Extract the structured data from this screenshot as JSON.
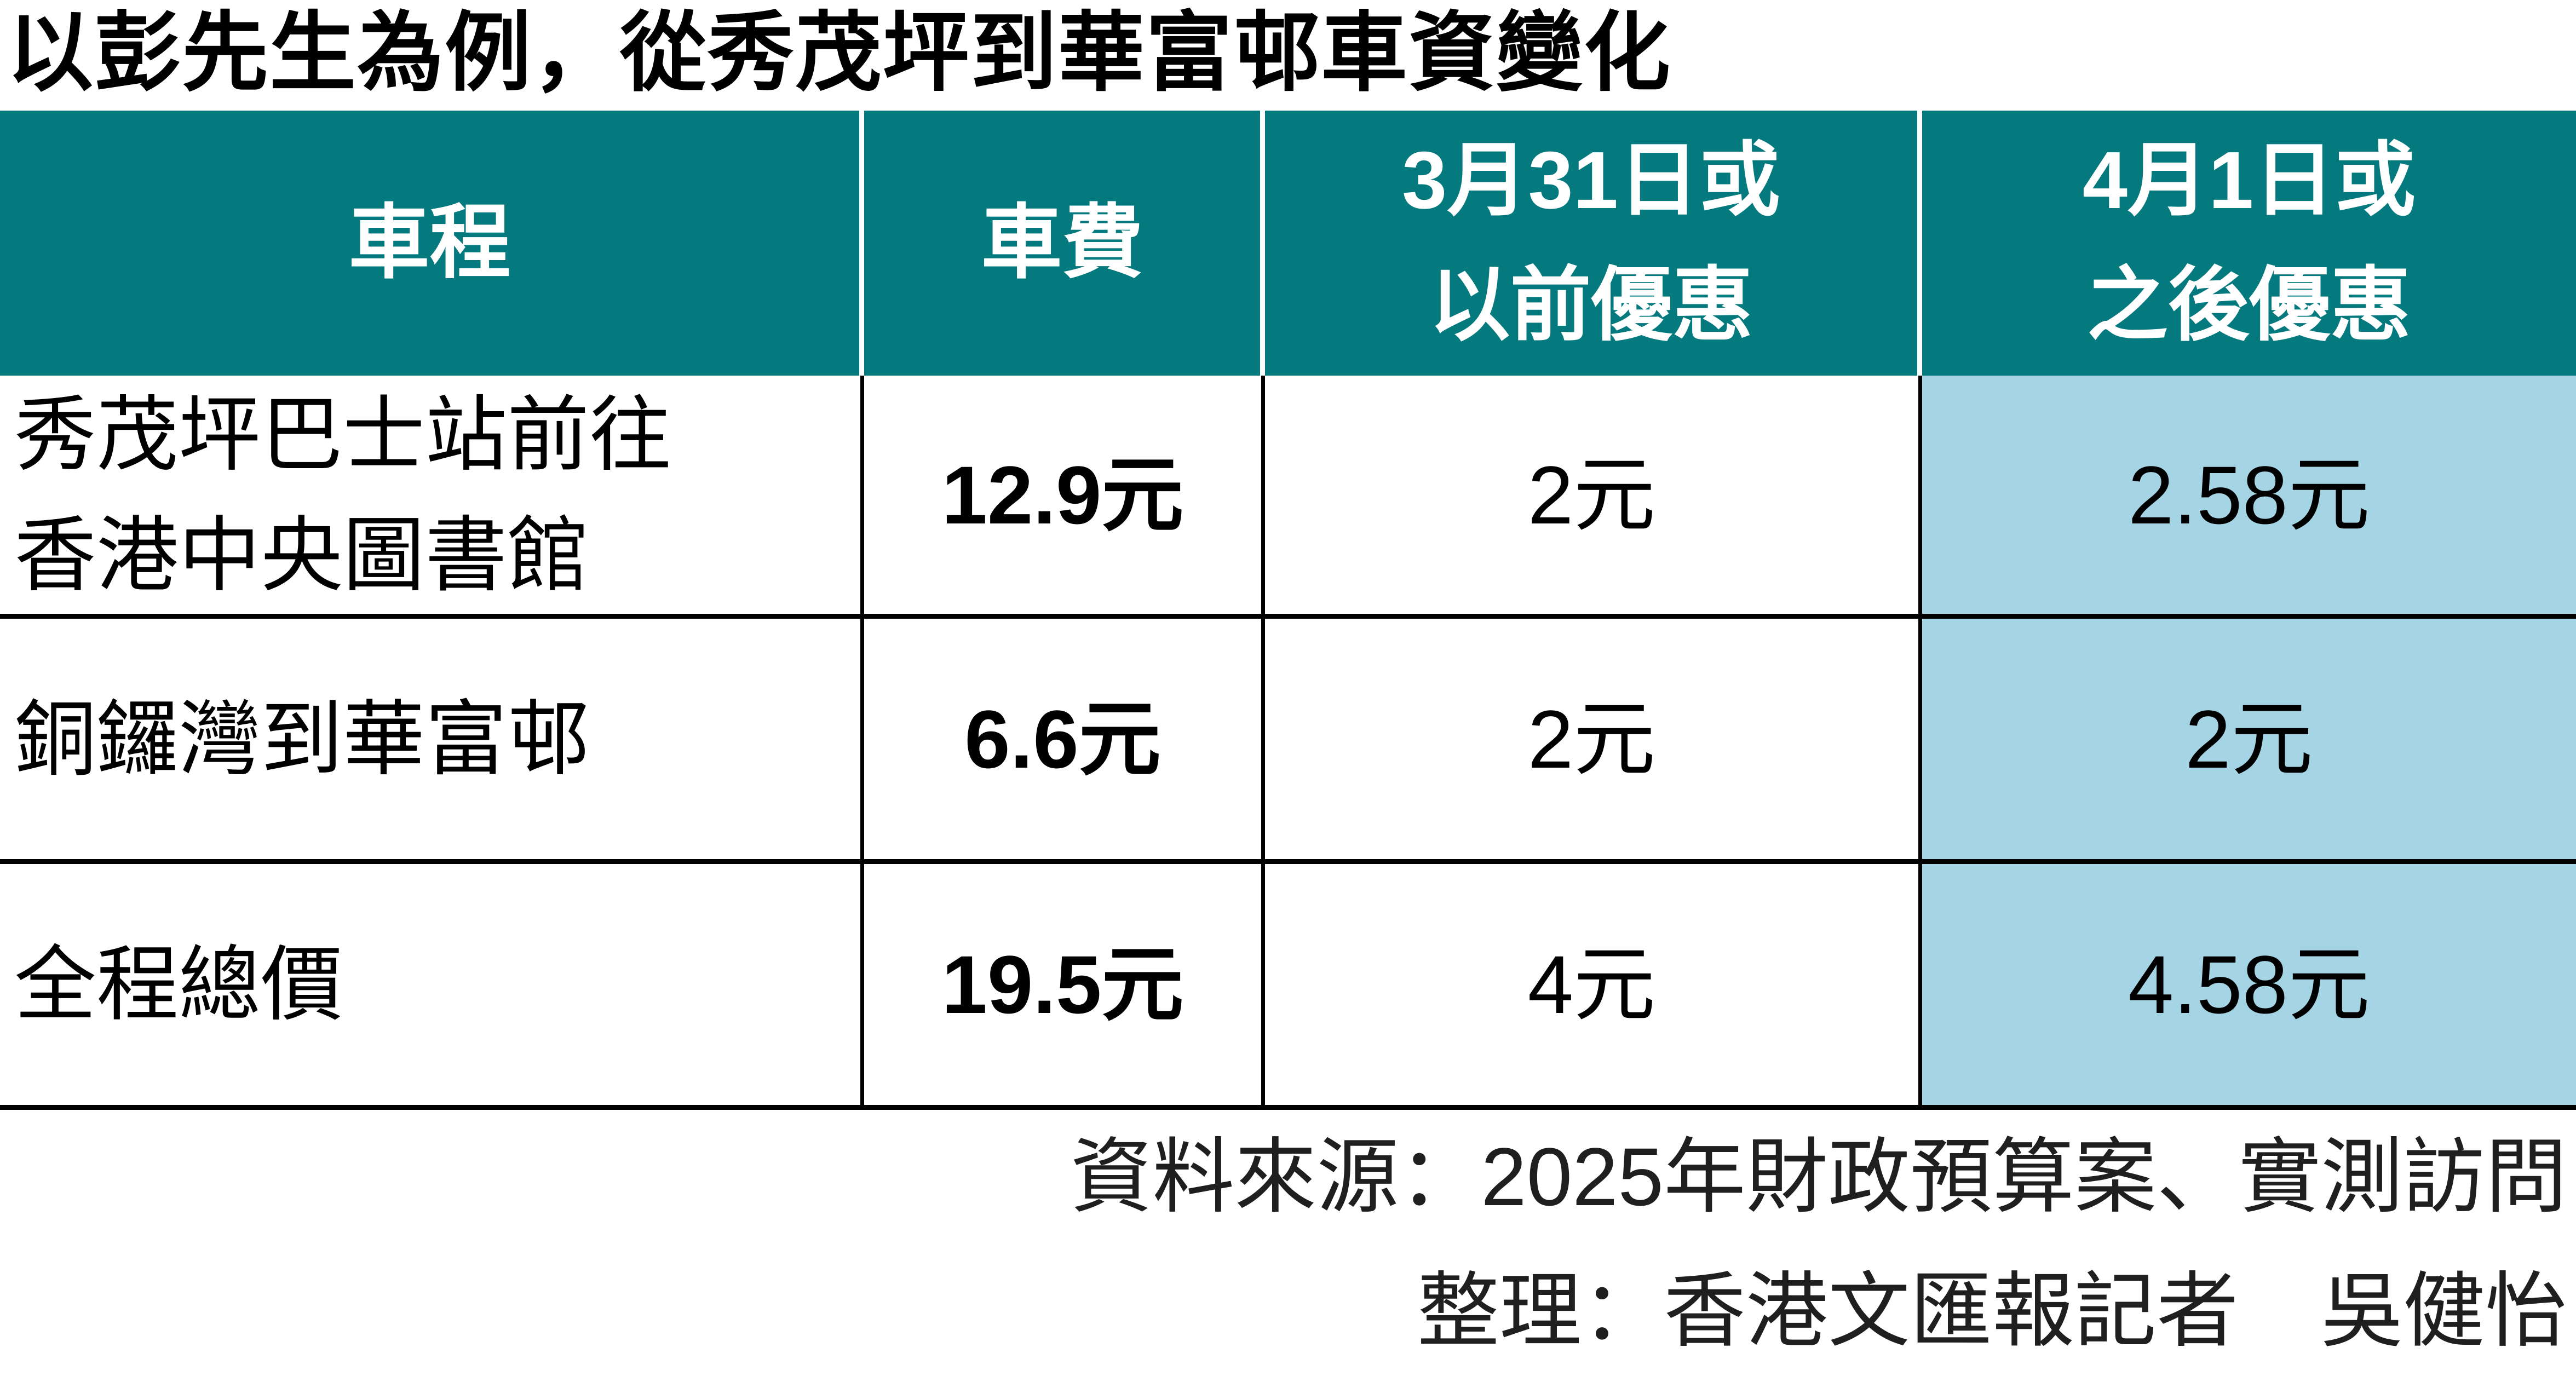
{
  "title": "以彭先生為例，從秀茂坪到華富邨車資變化",
  "table": {
    "header": {
      "trip": "車程",
      "fare": "車費",
      "before_line1": "3月31日或",
      "before_line2": "以前優惠",
      "after_line1": "4月1日或",
      "after_line2": "之後優惠"
    },
    "rows": [
      {
        "route_line1": "秀茂坪巴士站前往",
        "route_line2": "香港中央圖書館",
        "fare": "12.9元",
        "before": "2元",
        "after": "2.58元"
      },
      {
        "route_line1": "銅鑼灣到華富邨",
        "fare": "6.6元",
        "before": "2元",
        "after": "2元"
      },
      {
        "route_line1": "全程總價",
        "fare": "19.5元",
        "before": "4元",
        "after": "4.58元"
      }
    ]
  },
  "footer": {
    "source": "資料來源：2025年財政預算案、實測訪問",
    "credit": "整理：香港文匯報記者　吳健怡"
  },
  "colors": {
    "header_bg": "#047a7e",
    "header_text": "#ffffff",
    "highlight_bg": "#a5d4e4",
    "grid_line": "#000000"
  },
  "chart_data": {
    "type": "table",
    "title": "以彭先生為例，從秀茂坪到華富邨車資變化",
    "columns": [
      "車程",
      "車費",
      "3月31日或以前優惠",
      "4月1日或之後優惠"
    ],
    "rows": [
      [
        "秀茂坪巴士站前往香港中央圖書館",
        "12.9元",
        "2元",
        "2.58元"
      ],
      [
        "銅鑼灣到華富邨",
        "6.6元",
        "2元",
        "2元"
      ],
      [
        "全程總價",
        "19.5元",
        "4元",
        "4.58元"
      ]
    ],
    "highlighted_column": "4月1日或之後優惠",
    "notes": [
      "資料來源：2025年財政預算案、實測訪問",
      "整理：香港文匯報記者　吳健怡"
    ]
  }
}
